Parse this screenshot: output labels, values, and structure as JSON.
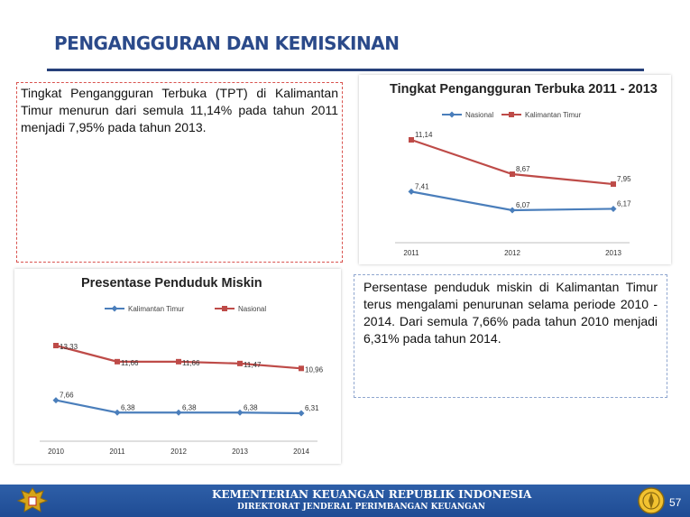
{
  "page": {
    "title": "PENGANGGURAN DAN KEMISKINAN",
    "text_tpt": "Tingkat Pengangguran Terbuka (TPT) di Kalimantan Timur menurun dari semula 11,14% pada tahun 2011 menjadi 7,95% pada tahun 2013.",
    "text_miskin": "Persentase penduduk miskin di Kalimantan Timur terus mengalami penurunan selama periode 2010 - 2014. Dari semula 7,66% pada tahun 2010 menjadi 6,31% pada tahun 2014."
  },
  "footer": {
    "line1": "KEMENTERIAN KEUANGAN REPUBLIK INDONESIA",
    "line2": "DIREKTORAT JENDERAL PERIMBANGAN KEUANGAN",
    "page_number": "57"
  },
  "colors": {
    "blue_series": "#4a7ebb",
    "red_series": "#be4b48",
    "title": "#2b4a8a",
    "footer": "#2356a0"
  },
  "chart_data": [
    {
      "type": "line",
      "title": "Tingkat Pengangguran Terbuka 2011 - 2013",
      "x": [
        "2011",
        "2012",
        "2013"
      ],
      "legend": "top",
      "grid": false,
      "series": [
        {
          "name": "Nasional",
          "values": [
            7.41,
            6.07,
            6.17
          ],
          "labels": [
            "7,41",
            "6,07",
            "6,17"
          ],
          "color": "#4a7ebb",
          "marker": "diamond"
        },
        {
          "name": "Kalimantan Timur",
          "values": [
            11.14,
            8.67,
            7.95
          ],
          "labels": [
            "11,14",
            "8,67",
            "7,95"
          ],
          "color": "#be4b48",
          "marker": "square"
        }
      ]
    },
    {
      "type": "line",
      "title": "Presentase Penduduk Miskin",
      "x": [
        "2010",
        "2011",
        "2012",
        "2013",
        "2014"
      ],
      "legend": "top",
      "grid": false,
      "series": [
        {
          "name": "Kalimantan Timur",
          "values": [
            7.66,
            6.38,
            6.38,
            6.38,
            6.31
          ],
          "labels": [
            "7,66",
            "6,38",
            "6,38",
            "6,38",
            "6,31"
          ],
          "color": "#4a7ebb",
          "marker": "diamond"
        },
        {
          "name": "Nasional",
          "values": [
            13.33,
            11.66,
            11.66,
            11.47,
            10.96
          ],
          "labels": [
            "13,33",
            "11,66",
            "11,66",
            "11,47",
            "10,96"
          ],
          "color": "#be4b48",
          "marker": "square"
        }
      ]
    }
  ]
}
